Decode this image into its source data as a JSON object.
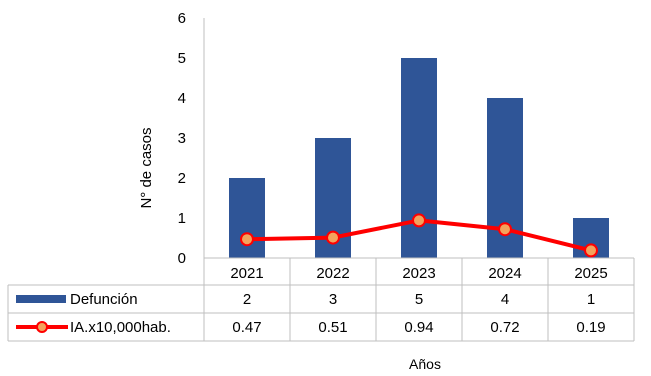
{
  "chart_data": {
    "type": "bar",
    "categories": [
      "2021",
      "2022",
      "2023",
      "2024",
      "2025"
    ],
    "ylim": [
      0,
      6
    ],
    "yticks": [
      0,
      1,
      2,
      3,
      4,
      5,
      6
    ],
    "ylabel": "N° de casos",
    "xlabel": "Años",
    "grid": false,
    "legend": "data-table",
    "series": [
      {
        "name": "Defunción",
        "type": "bar",
        "color": "#2f5597",
        "values": [
          2,
          3,
          5,
          4,
          1
        ],
        "table_values": [
          "2",
          "3",
          "5",
          "4",
          "1"
        ]
      },
      {
        "name": "IA.x10,000hab.",
        "type": "line",
        "color": "#ff0000",
        "marker_color": "#f4a35c",
        "values": [
          0.47,
          0.51,
          0.94,
          0.72,
          0.19
        ],
        "table_values": [
          "0.47",
          "0.51",
          "0.94",
          "0.72",
          "0.19"
        ]
      }
    ]
  }
}
